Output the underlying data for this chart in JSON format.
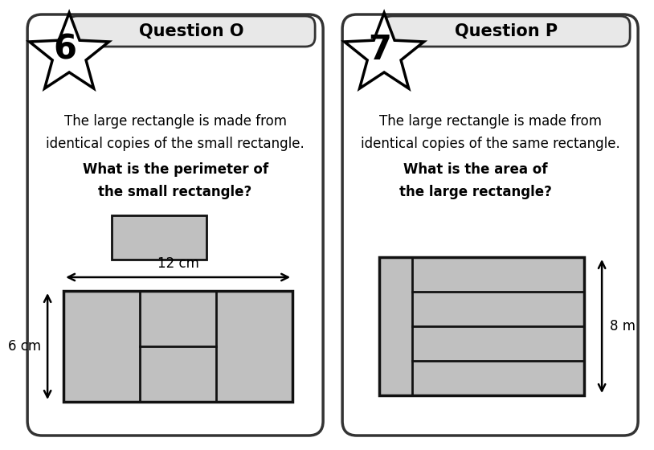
{
  "fig_width": 7.8,
  "fig_height": 5.4,
  "bg_color": "#ffffff",
  "card_bg": "#ffffff",
  "card_border": "#333333",
  "title_bg": "#e8e8e8",
  "rect_fill": "#c0c0c0",
  "rect_edge": "#111111",
  "panel_left": {
    "title": "Question O",
    "number": "6",
    "body_text": "The large rectangle is made from\nidentical copies of the small rectangle.",
    "question_text": "What is the perimeter of\nthe small rectangle?",
    "dim_label_h": "12 cm",
    "dim_label_v": "6 cm"
  },
  "panel_right": {
    "title": "Question P",
    "number": "7",
    "body_text": "The large rectangle is made from\nidentical copies of the same rectangle.",
    "question_text": "What is the area of\nthe large rectangle?",
    "dim_label_v": "8 m"
  }
}
